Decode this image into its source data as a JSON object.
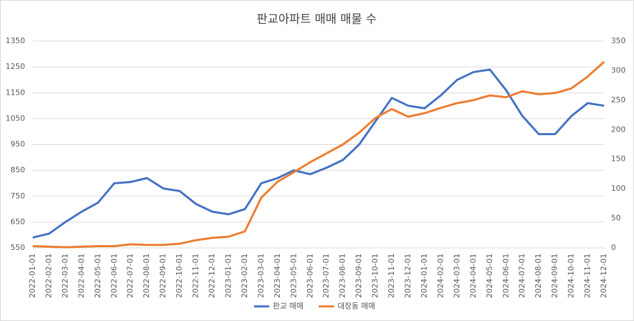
{
  "chart_data": {
    "type": "line",
    "title": "판교아파트 매매 매물 수",
    "categories": [
      "2022-01-01",
      "2022-02-01",
      "2022-03-01",
      "2022-04-01",
      "2022-05-01",
      "2022-06-01",
      "2022-07-01",
      "2022-08-01",
      "2022-09-01",
      "2022-10-01",
      "2022-11-01",
      "2022-12-01",
      "2023-01-01",
      "2023-02-01",
      "2023-03-01",
      "2023-04-01",
      "2023-05-01",
      "2023-06-01",
      "2023-07-01",
      "2023-08-01",
      "2023-09-01",
      "2023-10-01",
      "2023-11-01",
      "2023-12-01",
      "2024-01-01",
      "2024-02-01",
      "2024-03-01",
      "2024-04-01",
      "2024-05-01",
      "2024-06-01",
      "2024-07-01",
      "2024-08-01",
      "2024-09-01",
      "2024-10-01",
      "2024-11-01",
      "2024-12-01"
    ],
    "series": [
      {
        "name": "판교 매매",
        "color": "#4472c4",
        "axis": "y",
        "values": [
          590,
          605,
          650,
          690,
          725,
          800,
          805,
          820,
          780,
          770,
          720,
          690,
          680,
          700,
          800,
          820,
          850,
          835,
          860,
          890,
          950,
          1040,
          1130,
          1100,
          1090,
          1140,
          1200,
          1230,
          1240,
          1160,
          1060,
          990,
          990,
          1060,
          1110,
          1100
        ]
      },
      {
        "name": "대장동 매매",
        "color": "#ed7d31",
        "axis": "y2",
        "values": [
          3,
          2,
          1,
          2,
          3,
          3,
          6,
          5,
          5,
          7,
          13,
          17,
          19,
          28,
          85,
          112,
          128,
          145,
          160,
          175,
          195,
          220,
          235,
          222,
          228,
          237,
          245,
          250,
          258,
          255,
          265,
          260,
          262,
          270,
          290,
          315
        ]
      }
    ],
    "ylim": [
      550,
      1350
    ],
    "yticks": [
      550,
      650,
      750,
      850,
      950,
      1050,
      1150,
      1250,
      1350
    ],
    "y2lim": [
      0,
      350
    ],
    "y2ticks": [
      0,
      50,
      100,
      150,
      200,
      250,
      300,
      350
    ],
    "grid": true,
    "legend": "bottom"
  }
}
